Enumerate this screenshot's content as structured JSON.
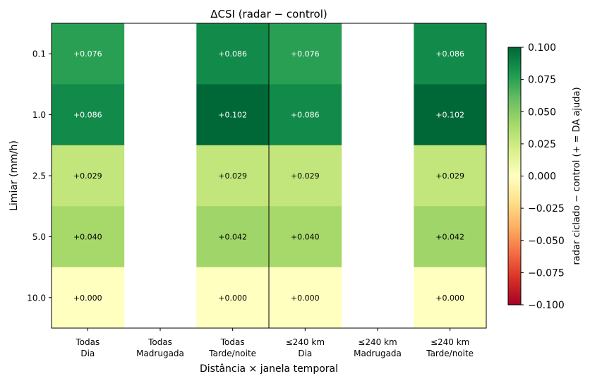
{
  "chart_data": {
    "type": "heatmap",
    "title": "ΔCSI  (radar − control)",
    "xlabel": "Distância × janela temporal",
    "ylabel": "Limiar (mm/h)",
    "columns": [
      {
        "line1": "Todas",
        "line2": "Dia"
      },
      {
        "line1": "Todas",
        "line2": "Madrugada"
      },
      {
        "line1": "Todas",
        "line2": "Tarde/noite"
      },
      {
        "line1": "≤240 km",
        "line2": "Dia"
      },
      {
        "line1": "≤240 km",
        "line2": "Madrugada"
      },
      {
        "line1": "≤240 km",
        "line2": "Tarde/noite"
      }
    ],
    "rows": [
      "0.1",
      "1.0",
      "2.5",
      "5.0",
      "10.0"
    ],
    "values": [
      [
        0.076,
        null,
        0.086,
        0.076,
        null,
        0.086
      ],
      [
        0.086,
        null,
        0.102,
        0.086,
        null,
        0.102
      ],
      [
        0.029,
        null,
        0.029,
        0.029,
        null,
        0.029
      ],
      [
        0.04,
        null,
        0.042,
        0.04,
        null,
        0.042
      ],
      [
        0.0,
        null,
        0.0,
        0.0,
        null,
        0.0
      ]
    ],
    "cell_labels": [
      [
        "+0.076",
        "",
        "+0.086",
        "+0.076",
        "",
        "+0.086"
      ],
      [
        "+0.086",
        "",
        "+0.102",
        "+0.086",
        "",
        "+0.102"
      ],
      [
        "+0.029",
        "",
        "+0.029",
        "+0.029",
        "",
        "+0.029"
      ],
      [
        "+0.040",
        "",
        "+0.042",
        "+0.040",
        "",
        "+0.042"
      ],
      [
        "+0.000",
        "",
        "+0.000",
        "+0.000",
        "",
        "+0.000"
      ]
    ],
    "colormap": "RdYlGn",
    "vmin": -0.1,
    "vmax": 0.1,
    "colorbar": {
      "label": "radar ciclado − control  (+ = DA ajuda)",
      "ticks": [
        "0.100",
        "0.075",
        "0.050",
        "0.025",
        "0.000",
        "−0.025",
        "−0.050",
        "−0.075",
        "−0.100"
      ],
      "tick_values": [
        0.1,
        0.075,
        0.05,
        0.025,
        0.0,
        -0.025,
        -0.05,
        -0.075,
        -0.1
      ]
    },
    "divider_after_column": 3,
    "grid": false
  }
}
